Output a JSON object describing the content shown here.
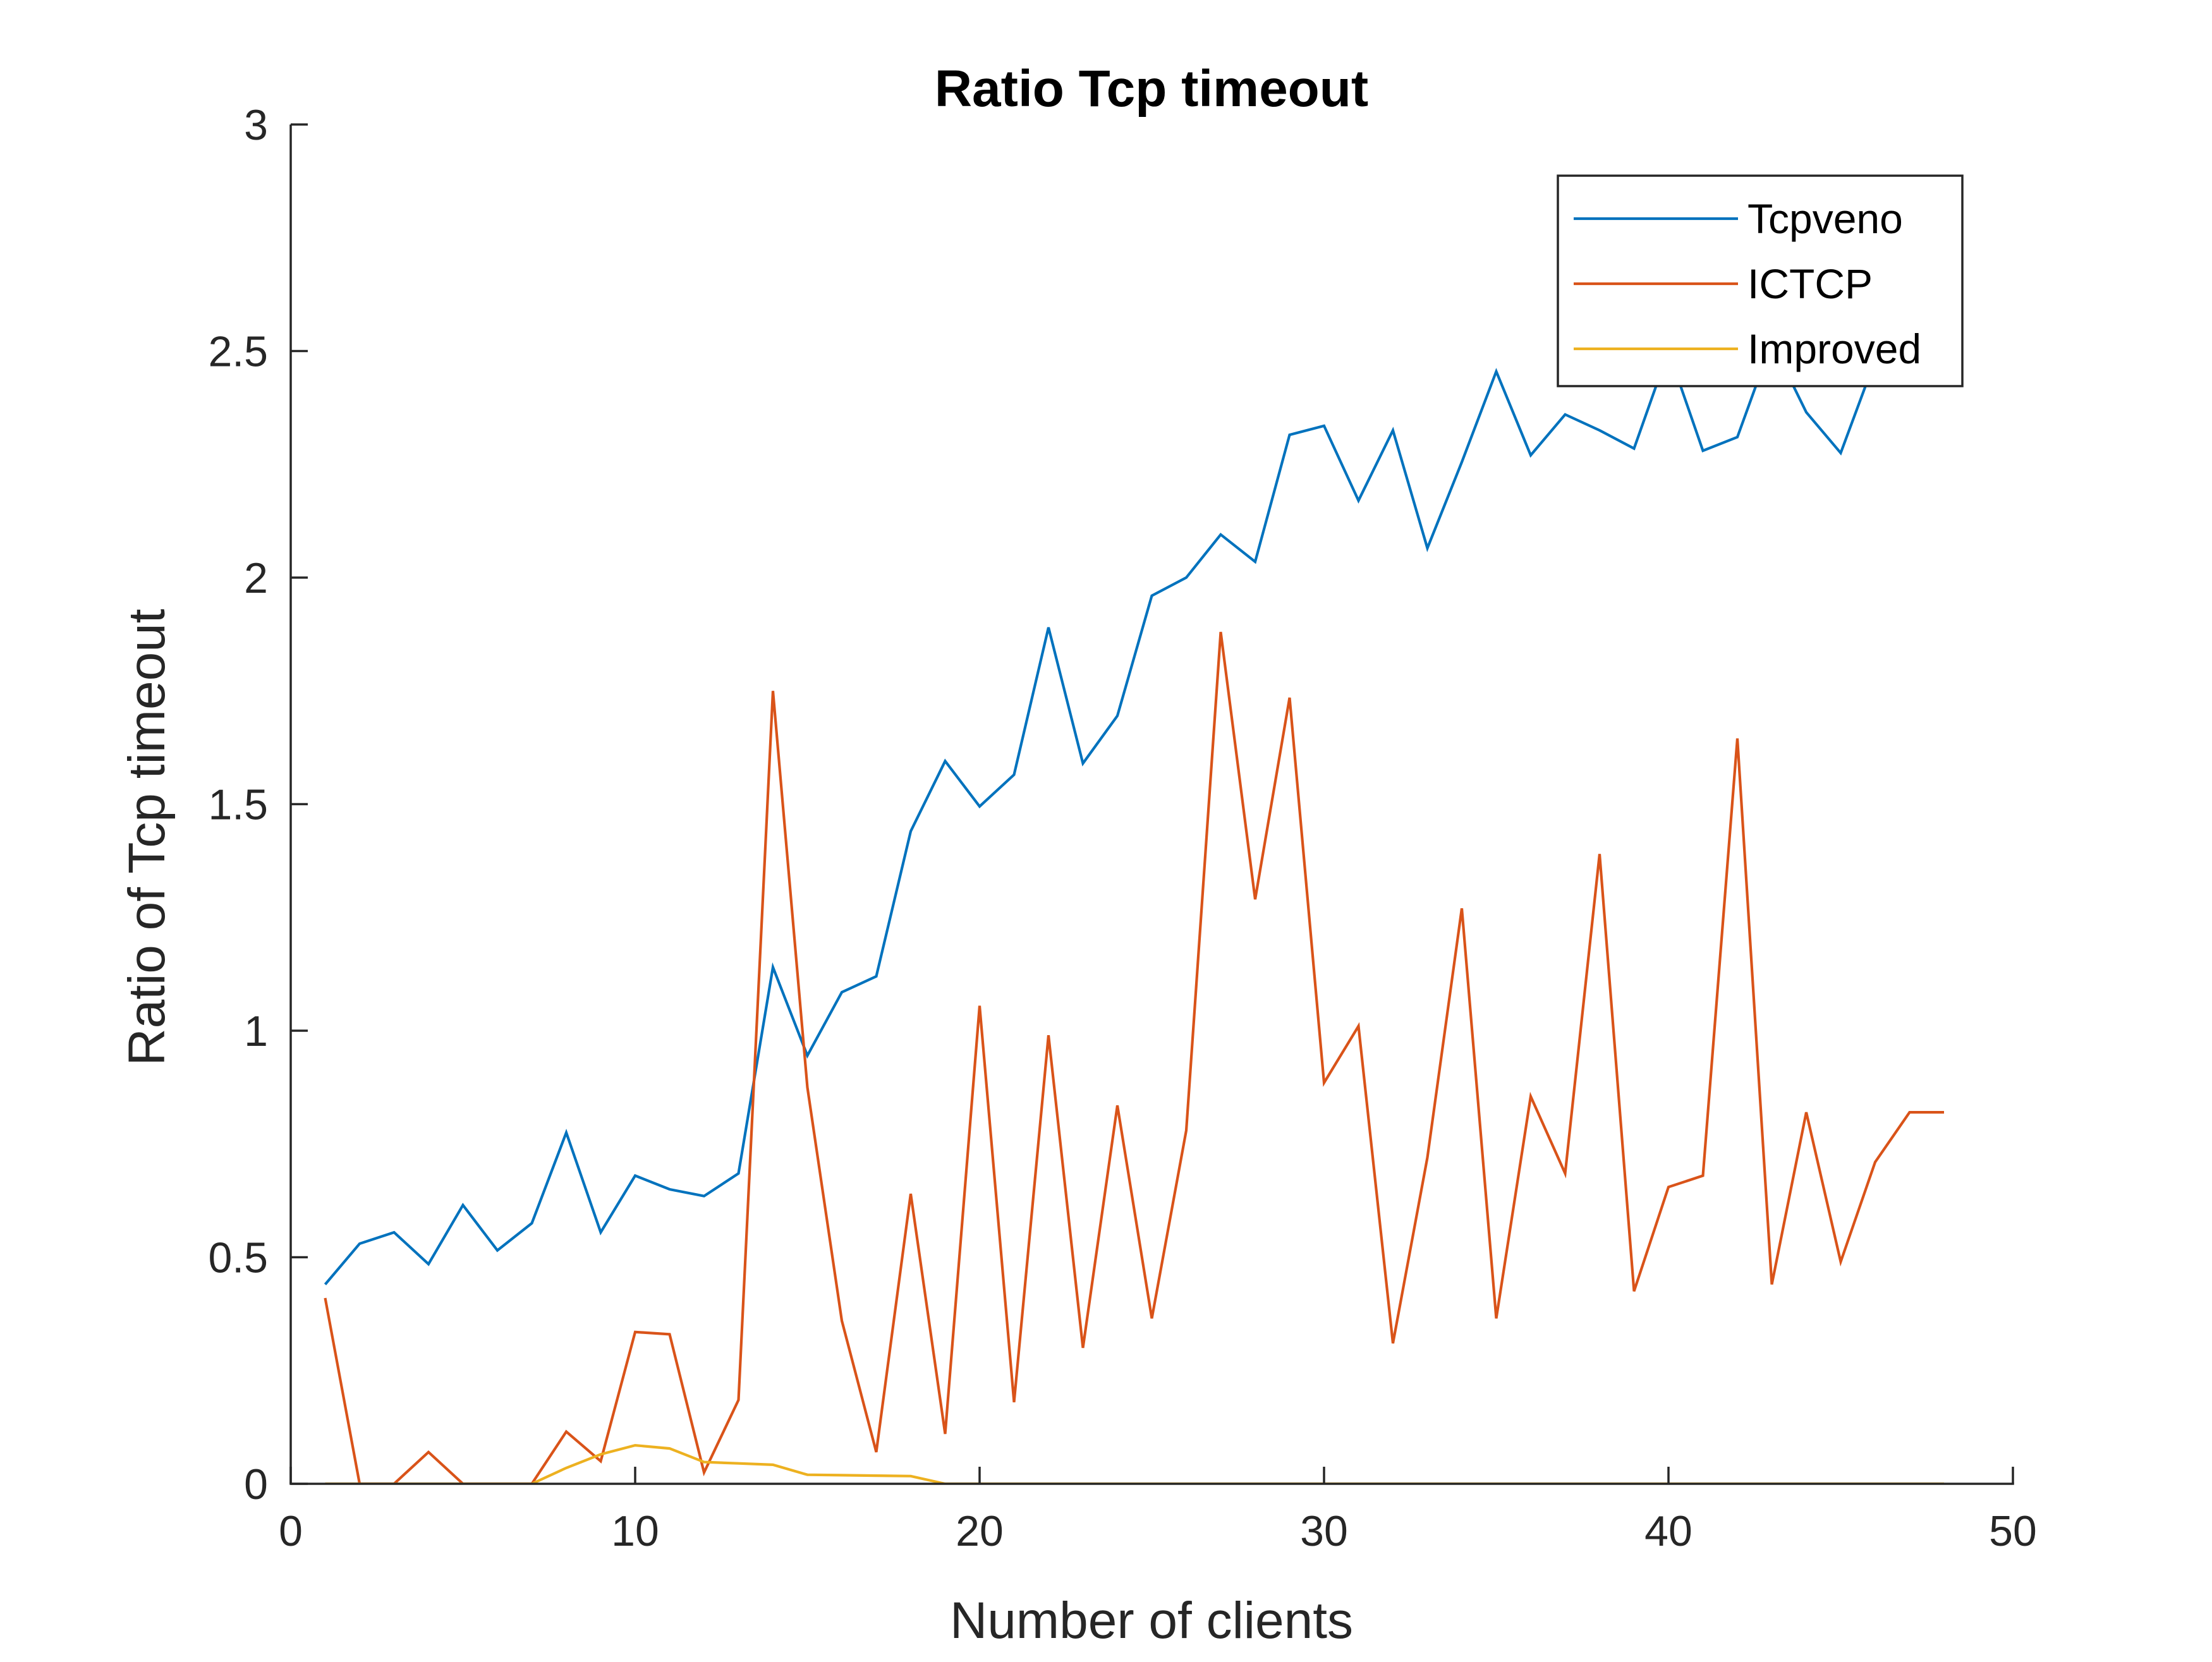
{
  "chart_data": {
    "type": "line",
    "title": "Ratio Tcp timeout",
    "xlabel": "Number of clients",
    "ylabel": "Ratio of Tcp timeout",
    "xlim": [
      0,
      50
    ],
    "ylim": [
      0,
      3
    ],
    "xticks": [
      "0",
      "10",
      "20",
      "30",
      "40",
      "50"
    ],
    "yticks": [
      "0",
      "0.5",
      "1",
      "1.5",
      "2",
      "2.5",
      "3"
    ],
    "grid": false,
    "legend_position": "top-right",
    "x": [
      1,
      2,
      3,
      4,
      5,
      6,
      7,
      8,
      9,
      10,
      11,
      12,
      13,
      14,
      15,
      16,
      17,
      18,
      19,
      20,
      21,
      22,
      23,
      24,
      25,
      26,
      27,
      28,
      29,
      30,
      31,
      32,
      33,
      34,
      35,
      36,
      37,
      38,
      39,
      40,
      41,
      42,
      43,
      44,
      45,
      46,
      47,
      48
    ],
    "series": [
      {
        "name": "Tcpveno",
        "color": "#0072BD",
        "values": [
          0.44,
          0.53,
          0.555,
          0.485,
          0.615,
          0.515,
          0.575,
          0.775,
          0.555,
          0.68,
          0.65,
          0.635,
          0.685,
          1.14,
          0.945,
          1.085,
          1.12,
          1.44,
          1.595,
          1.495,
          1.565,
          1.89,
          1.59,
          1.695,
          1.96,
          2.0,
          2.095,
          2.035,
          2.315,
          2.335,
          2.17,
          2.325,
          2.065,
          2.255,
          2.455,
          2.27,
          2.36,
          2.325,
          2.285,
          2.5,
          2.28,
          2.31,
          2.52,
          2.365,
          2.275,
          2.48,
          2.5,
          2.5
        ]
      },
      {
        "name": "ICTCP",
        "color": "#D95319",
        "values": [
          0.41,
          0.0,
          0.0,
          0.07,
          0.0,
          0.0,
          0.0,
          0.115,
          0.05,
          0.335,
          0.33,
          0.025,
          0.185,
          1.75,
          0.875,
          0.36,
          0.07,
          0.64,
          0.11,
          1.055,
          0.18,
          0.99,
          0.3,
          0.835,
          0.365,
          0.78,
          1.88,
          1.29,
          1.735,
          0.885,
          1.01,
          0.31,
          0.72,
          1.27,
          0.365,
          0.855,
          0.685,
          1.39,
          0.425,
          0.655,
          0.68,
          1.645,
          0.44,
          0.82,
          0.49,
          0.71,
          0.82,
          0.82
        ]
      },
      {
        "name": "Improved",
        "color": "#EDB120",
        "values": [
          0.0,
          0.0,
          0.0,
          0.0,
          0.0,
          0.0,
          0.0,
          0.035,
          0.065,
          0.085,
          0.078,
          0.048,
          0.045,
          0.042,
          0.02,
          0.019,
          0.018,
          0.017,
          0.0,
          0.0,
          0.0,
          0.0,
          0.0,
          0.0,
          0.0,
          0.0,
          0.0,
          0.0,
          0.0,
          0.0,
          0.0,
          0.0,
          0.0,
          0.0,
          0.0,
          0.0,
          0.0,
          0.0,
          0.0,
          0.0,
          0.0,
          0.0,
          0.0,
          0.0,
          0.0,
          0.0,
          0.0,
          0.0
        ]
      }
    ]
  }
}
